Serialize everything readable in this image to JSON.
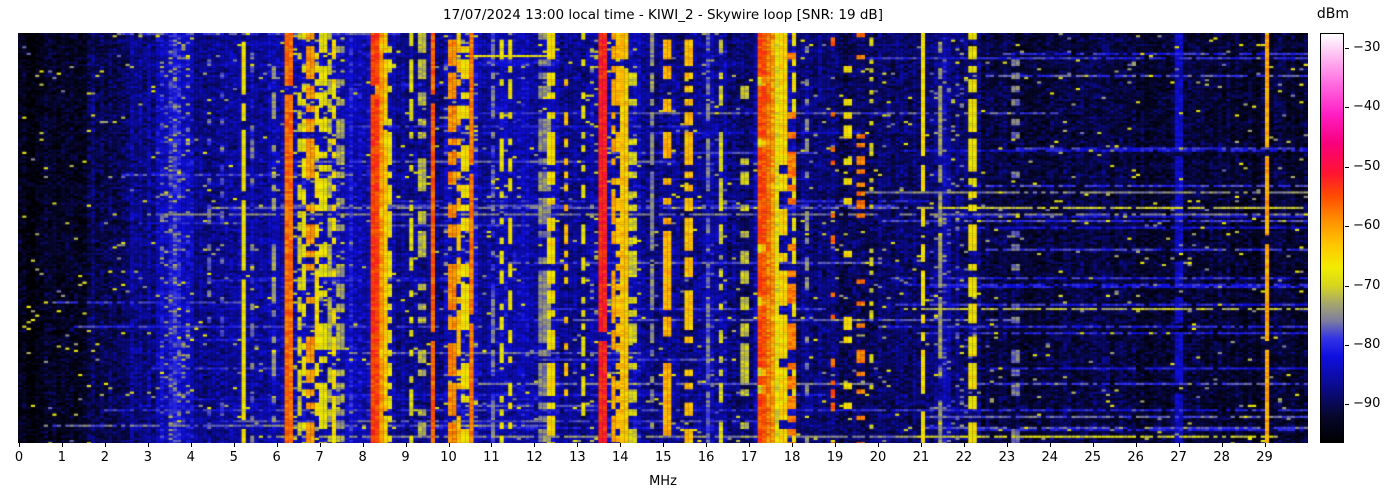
{
  "header": {
    "title": "17/07/2024 13:00 local time - KIWI_2 - Skywire loop [SNR: 19 dB]"
  },
  "chart_data": {
    "type": "heatmap",
    "title": "17/07/2024 13:00 local time - KIWI_2 - Skywire loop [SNR: 19 dB]",
    "xlabel": "MHz",
    "x_range": [
      0,
      30
    ],
    "x_ticks": [
      "0",
      "1",
      "2",
      "3",
      "4",
      "5",
      "6",
      "7",
      "8",
      "9",
      "10",
      "11",
      "12",
      "13",
      "14",
      "15",
      "16",
      "17",
      "18",
      "19",
      "20",
      "21",
      "22",
      "23",
      "24",
      "25",
      "26",
      "27",
      "28",
      "29"
    ],
    "grid": false,
    "legend_position": "none",
    "colorbar": {
      "label": "dBm",
      "tick_values": [
        -30,
        -40,
        -50,
        -60,
        -70,
        -80,
        -90
      ],
      "tick_labels": [
        "−30",
        "−40",
        "−50",
        "−60",
        "−70",
        "−80",
        "−90"
      ],
      "value_range_top": -27.5,
      "value_range_bottom": -96.5
    },
    "colormap_stops": [
      [
        -97.0,
        "#000000"
      ],
      [
        -92.0,
        "#07072e"
      ],
      [
        -87.0,
        "#0b0b8f"
      ],
      [
        -82.0,
        "#0f0fe0"
      ],
      [
        -79.0,
        "#3333e6"
      ],
      [
        -76.0,
        "#7d7da0"
      ],
      [
        -73.0,
        "#a8a86a"
      ],
      [
        -70.0,
        "#d6d61e"
      ],
      [
        -67.0,
        "#f2ec00"
      ],
      [
        -63.0,
        "#ffc400"
      ],
      [
        -59.0,
        "#ff9000"
      ],
      [
        -55.0,
        "#ff4d00"
      ],
      [
        -51.0,
        "#ff1430"
      ],
      [
        -46.0,
        "#f8007e"
      ],
      [
        -41.0,
        "#ff1fc4"
      ],
      [
        -36.0,
        "#ff6ae0"
      ],
      [
        -31.0,
        "#ffc0f2"
      ],
      [
        -27.5,
        "#ffffff"
      ]
    ],
    "noise_floor_profile": [
      {
        "f0": 0.0,
        "f1": 0.6,
        "level": -95
      },
      {
        "f0": 0.6,
        "f1": 1.6,
        "level": -93
      },
      {
        "f0": 1.6,
        "f1": 2.6,
        "level": -90
      },
      {
        "f0": 2.6,
        "f1": 3.2,
        "level": -87
      },
      {
        "f0": 3.2,
        "f1": 4.1,
        "level": -84
      },
      {
        "f0": 4.1,
        "f1": 4.6,
        "level": -87
      },
      {
        "f0": 4.6,
        "f1": 5.4,
        "level": -86
      },
      {
        "f0": 5.4,
        "f1": 6.2,
        "level": -85
      },
      {
        "f0": 6.2,
        "f1": 7.6,
        "level": -84
      },
      {
        "f0": 7.6,
        "f1": 8.2,
        "level": -85
      },
      {
        "f0": 8.2,
        "f1": 9.0,
        "level": -86
      },
      {
        "f0": 9.0,
        "f1": 9.9,
        "level": -87
      },
      {
        "f0": 9.9,
        "f1": 10.7,
        "level": -84
      },
      {
        "f0": 10.7,
        "f1": 12.6,
        "level": -85
      },
      {
        "f0": 12.6,
        "f1": 13.3,
        "level": -87
      },
      {
        "f0": 13.3,
        "f1": 14.5,
        "level": -85
      },
      {
        "f0": 14.5,
        "f1": 15.9,
        "level": -87
      },
      {
        "f0": 15.9,
        "f1": 16.5,
        "level": -85
      },
      {
        "f0": 16.5,
        "f1": 17.1,
        "level": -88
      },
      {
        "f0": 17.1,
        "f1": 18.1,
        "level": -86
      },
      {
        "f0": 18.1,
        "f1": 19.0,
        "level": -88
      },
      {
        "f0": 19.0,
        "f1": 20.9,
        "level": -89
      },
      {
        "f0": 20.9,
        "f1": 22.4,
        "level": -88
      },
      {
        "f0": 22.4,
        "f1": 26.0,
        "level": -91
      },
      {
        "f0": 26.0,
        "f1": 30.0,
        "level": -92
      }
    ],
    "signal_bands": [
      {
        "f": 3.65,
        "w": 0.28,
        "level": -80,
        "duty": 1.0,
        "soft": true
      },
      {
        "f": 4.47,
        "w": 0.025,
        "level": -77,
        "duty": 0.35
      },
      {
        "f": 4.75,
        "w": 0.02,
        "level": -78,
        "duty": 0.3
      },
      {
        "f": 5.24,
        "w": 0.03,
        "level": -67,
        "duty": 0.85
      },
      {
        "f": 5.45,
        "w": 0.02,
        "level": -76,
        "duty": 0.3
      },
      {
        "f": 5.95,
        "w": 0.02,
        "level": -74,
        "duty": 0.4
      },
      {
        "f": 6.31,
        "w": 0.03,
        "level": -57,
        "duty": 0.95
      },
      {
        "f": 6.52,
        "w": 0.02,
        "level": -70,
        "duty": 0.5
      },
      {
        "f": 6.65,
        "w": 0.02,
        "level": -68,
        "duty": 0.45
      },
      {
        "f": 6.8,
        "w": 0.03,
        "level": -60,
        "duty": 0.5
      },
      {
        "f": 6.93,
        "w": 0.025,
        "level": -66,
        "duty": 0.6
      },
      {
        "f": 7.12,
        "w": 0.025,
        "level": -68,
        "duty": 0.5
      },
      {
        "f": 7.23,
        "w": 0.02,
        "level": -72,
        "duty": 0.55
      },
      {
        "f": 7.35,
        "w": 0.03,
        "level": -66,
        "duty": 0.5
      },
      {
        "f": 7.48,
        "w": 0.02,
        "level": -73,
        "duty": 0.4
      },
      {
        "f": 7.72,
        "w": 0.12,
        "level": -81,
        "duty": 1.0,
        "soft": true
      },
      {
        "f": 8.28,
        "w": 0.045,
        "level": -54,
        "duty": 0.97
      },
      {
        "f": 8.4,
        "w": 0.03,
        "level": -60,
        "duty": 0.9
      },
      {
        "f": 8.5,
        "w": 0.03,
        "level": -64,
        "duty": 0.85
      },
      {
        "f": 8.62,
        "w": 0.02,
        "level": -68,
        "duty": 0.6
      },
      {
        "f": 9.15,
        "w": 0.02,
        "level": -69,
        "duty": 0.5
      },
      {
        "f": 9.4,
        "w": 0.02,
        "level": -72,
        "duty": 0.4
      },
      {
        "f": 9.63,
        "w": 0.03,
        "level": -56,
        "duty": 0.95
      },
      {
        "f": 10.12,
        "w": 0.03,
        "level": -59,
        "duty": 0.7
      },
      {
        "f": 10.25,
        "w": 0.03,
        "level": -63,
        "duty": 0.6
      },
      {
        "f": 10.4,
        "w": 0.025,
        "level": -66,
        "duty": 0.55
      },
      {
        "f": 10.56,
        "w": 0.03,
        "level": -58,
        "duty": 0.9
      },
      {
        "f": 11.05,
        "w": 0.06,
        "level": -77,
        "duty": 0.7,
        "soft": true
      },
      {
        "f": 11.27,
        "w": 0.02,
        "level": -68,
        "duty": 0.45
      },
      {
        "f": 11.45,
        "w": 0.025,
        "level": -67,
        "duty": 0.5
      },
      {
        "f": 12.25,
        "w": 0.05,
        "level": -75,
        "duty": 0.6
      },
      {
        "f": 12.42,
        "w": 0.03,
        "level": -66,
        "duty": 0.6
      },
      {
        "f": 12.75,
        "w": 0.02,
        "level": -62,
        "duty": 0.3
      },
      {
        "f": 13.15,
        "w": 0.02,
        "level": -68,
        "duty": 0.4
      },
      {
        "f": 13.6,
        "w": 0.035,
        "level": -52,
        "duty": 0.97
      },
      {
        "f": 13.87,
        "w": 0.03,
        "level": -61,
        "duty": 0.55
      },
      {
        "f": 14.0,
        "w": 0.025,
        "level": -63,
        "duty": 0.6
      },
      {
        "f": 14.12,
        "w": 0.05,
        "level": -64,
        "duty": 0.95
      },
      {
        "f": 14.3,
        "w": 0.02,
        "level": -70,
        "duty": 0.5
      },
      {
        "f": 14.75,
        "w": 0.04,
        "level": -75,
        "duty": 0.7
      },
      {
        "f": 15.12,
        "w": 0.03,
        "level": -62,
        "duty": 0.6
      },
      {
        "f": 15.58,
        "w": 0.03,
        "level": -63,
        "duty": 0.65
      },
      {
        "f": 16.05,
        "w": 0.08,
        "level": -77,
        "duty": 0.8,
        "soft": true
      },
      {
        "f": 16.35,
        "w": 0.02,
        "level": -70,
        "duty": 0.5
      },
      {
        "f": 16.9,
        "w": 0.02,
        "level": -71,
        "duty": 0.4
      },
      {
        "f": 17.45,
        "w": 0.2,
        "level": -58,
        "duty": 1.0,
        "soft": true
      },
      {
        "f": 17.3,
        "w": 0.03,
        "level": -55,
        "duty": 0.9
      },
      {
        "f": 17.8,
        "w": 0.03,
        "level": -65,
        "duty": 0.8
      },
      {
        "f": 18.0,
        "w": 0.02,
        "level": -58,
        "duty": 0.4
      },
      {
        "f": 18.08,
        "w": 0.02,
        "level": -67,
        "duty": 0.5
      },
      {
        "f": 18.35,
        "w": 0.02,
        "level": -75,
        "duty": 0.4
      },
      {
        "f": 18.97,
        "w": 0.02,
        "level": -56,
        "duty": 0.22
      },
      {
        "f": 19.28,
        "w": 0.02,
        "level": -66,
        "duty": 0.3
      },
      {
        "f": 19.6,
        "w": 0.02,
        "level": -58,
        "duty": 0.22
      },
      {
        "f": 19.85,
        "w": 0.02,
        "level": -70,
        "duty": 0.25
      },
      {
        "f": 21.05,
        "w": 0.03,
        "level": -66,
        "duty": 0.75
      },
      {
        "f": 21.42,
        "w": 0.02,
        "level": -74,
        "duty": 0.8
      },
      {
        "f": 21.55,
        "w": 0.18,
        "level": -84,
        "duty": 1.0,
        "soft": true
      },
      {
        "f": 22.18,
        "w": 0.03,
        "level": -67,
        "duty": 0.7
      },
      {
        "f": 23.2,
        "w": 0.02,
        "level": -76,
        "duty": 0.3
      },
      {
        "f": 27.0,
        "w": 0.02,
        "level": -84,
        "duty": 0.9
      },
      {
        "f": 29.05,
        "w": 0.025,
        "level": -61,
        "duty": 0.97
      }
    ],
    "hot_zones": [
      {
        "f0": 3.3,
        "f1": 4.0,
        "prob": 0.12,
        "level": -75
      },
      {
        "f0": 6.2,
        "f1": 7.6,
        "prob": 0.08,
        "level": -72
      },
      {
        "f0": 9.9,
        "f1": 10.7,
        "prob": 0.08,
        "level": -74
      },
      {
        "f0": 13.3,
        "f1": 14.4,
        "prob": 0.06,
        "level": -72
      },
      {
        "f0": 16.0,
        "f1": 16.5,
        "prob": 0.05,
        "level": -76
      },
      {
        "f0": 21.2,
        "f1": 22.3,
        "prob": 0.06,
        "level": -76
      }
    ],
    "streaks": [
      {
        "y": 23,
        "f0": 9.95,
        "f1": 12.5,
        "level": -68,
        "h": 1
      },
      {
        "y": 27,
        "f0": 9.95,
        "f1": 12.6,
        "level": -81,
        "h": 3
      },
      {
        "y": 152,
        "f0": 22.0,
        "f1": 30.0,
        "level": -79,
        "h": 1
      },
      {
        "y": 160,
        "f0": 19.6,
        "f1": 30.0,
        "level": -75,
        "h": 1
      },
      {
        "y": 175,
        "f0": 20.8,
        "f1": 30.0,
        "level": -71,
        "h": 1
      },
      {
        "y": 175,
        "f0": 4.5,
        "f1": 20.8,
        "level": -77,
        "h": 1
      },
      {
        "y": 181,
        "f0": 3.0,
        "f1": 30.0,
        "level": -76,
        "h": 1
      },
      {
        "y": 194,
        "f0": 22.0,
        "f1": 30.0,
        "level": -82,
        "h": 1
      },
      {
        "y": 217,
        "f0": 22.4,
        "f1": 30.0,
        "level": -79,
        "h": 1
      },
      {
        "y": 254,
        "f0": 21.0,
        "f1": 30.0,
        "level": -81,
        "h": 1
      },
      {
        "y": 277,
        "f0": 20.5,
        "f1": 30.0,
        "level": -72,
        "h": 1
      },
      {
        "y": 335,
        "f0": 22.0,
        "f1": 30.0,
        "level": -81,
        "h": 1
      },
      {
        "y": 377,
        "f0": 2.0,
        "f1": 30.0,
        "level": -80,
        "h": 1
      },
      {
        "y": 384,
        "f0": 21.0,
        "f1": 30.0,
        "level": -77,
        "h": 1
      },
      {
        "y": 394,
        "f0": 21.0,
        "f1": 30.0,
        "level": -78,
        "h": 1
      },
      {
        "y": 404,
        "f0": 20.9,
        "f1": 29.3,
        "level": -70,
        "h": 1
      },
      {
        "y": 404,
        "f0": 6.0,
        "f1": 20.9,
        "level": -75,
        "h": 1
      }
    ],
    "minor_streaks": {
      "left": {
        "count": 34,
        "f_min": 0.4,
        "f_start_max": 15.0,
        "span_min": 1.5,
        "span_max": 14.0,
        "level_min": -83,
        "level_max": -76
      },
      "right": {
        "count": 14,
        "f_start_min": 19.5,
        "f_start_max": 23.5,
        "level_min": -83,
        "level_max": -78
      }
    },
    "noise": {
      "variance": 5,
      "speckle_prob": 0.02,
      "speckle_level": -72
    }
  },
  "axes": {
    "x_label": "MHz",
    "colorbar_label": "dBm"
  }
}
